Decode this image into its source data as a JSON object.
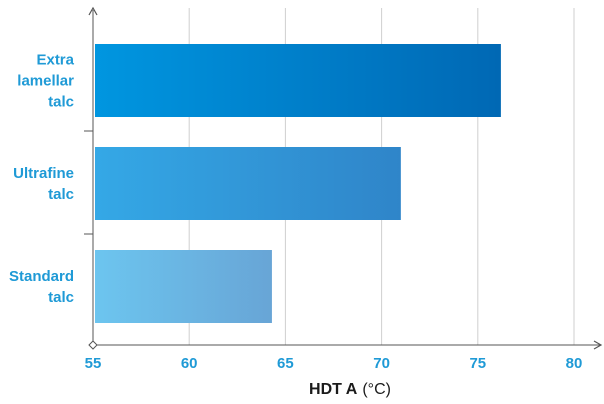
{
  "chart_data": {
    "type": "bar",
    "orientation": "horizontal",
    "categories": [
      [
        "Extra",
        "lamellar",
        "talc"
      ],
      [
        "Ultrafine",
        "talc"
      ],
      [
        "Standard",
        "talc"
      ]
    ],
    "values": [
      76.2,
      71.0,
      64.3
    ],
    "xlabel": "HDT A",
    "xlabel_unit": "(°C)",
    "xlim": [
      55,
      80
    ],
    "xticks": [
      "55",
      "60",
      "65",
      "70",
      "75",
      "80"
    ],
    "grid": "vertical",
    "colors": {
      "label": "#1f9ad6",
      "grid": "#cfcfcf",
      "axis": "#555555",
      "bar_gradients": [
        [
          "#0096e0",
          "#0068b4"
        ],
        [
          "#34a8e6",
          "#2f85c9"
        ],
        [
          "#6cc5ef",
          "#68a5d6"
        ]
      ]
    }
  }
}
